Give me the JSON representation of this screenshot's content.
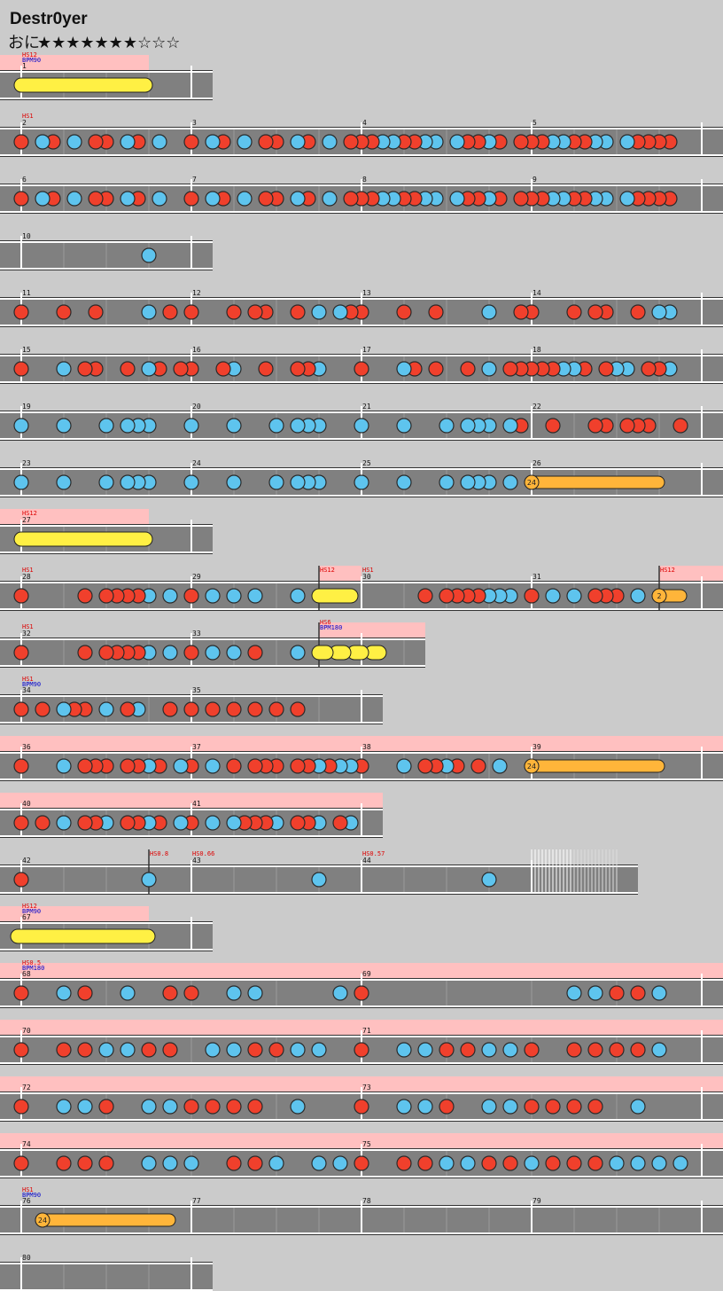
{
  "title": "Destr0yer",
  "difficulty": {
    "name": "おに",
    "stars": "★★★★★★★☆☆☆"
  },
  "rows": [
    {
      "measures": [
        1
      ],
      "events": [
        {
          "hs": "HS12",
          "bpm": "BPM90"
        }
      ],
      "notes": ""
    },
    {
      "measures": [
        2,
        3,
        4,
        5
      ],
      "events": [
        {
          "hs": "HS1"
        }
      ],
      "notes": "r-br-b-rr-br-b--r-br-b-rr-br-b-rrrbbrrbb-brrbr-rrrbbrrbb-brrrr--"
    },
    {
      "measures": [
        6,
        7,
        8,
        9
      ],
      "notes": "r-br-b-rr-br-b--r-br-b-rr-br-b-rrrbbrrbb-brrbr-rrrbbrrbb-brrrr--"
    },
    {
      "measures": [
        10
      ],
      "notes": "------------b---"
    },
    {
      "measures": [
        11,
        12,
        13,
        14
      ],
      "notes": "r---r--r----b-r-r---r-rr--r-b-brr---r--r----b--rr---r-rr--r-bb--"
    },
    {
      "measures": [
        15,
        16,
        17,
        18
      ],
      "notes": "r---b-rr--r-br-rr--rb--r--rrb---r---br-r--r-b-rrrrrbbr-rbb-rrb--"
    },
    {
      "measures": [
        19,
        20,
        21,
        22
      ],
      "notes": "b---b---b-bbb---b---b---b-bbb---b---b---b-bbb-br--r---rr-rrr--r-"
    },
    {
      "measures": [
        23,
        24,
        25,
        26
      ],
      "notes": "b---b---b-bbb---b---b---b-bbb---b---b---b-bbb-b-",
      "balloons": [
        24
      ]
    },
    {
      "measures": [
        27
      ],
      "events": [
        {
          "hs": "HS12"
        }
      ],
      "notes": ""
    },
    {
      "measures": [
        28,
        29,
        30,
        31
      ],
      "events": [
        {
          "hs": "HS1"
        },
        {
          "hs": "HS12"
        },
        {
          "hs": "HS1"
        },
        {
          "hs": "HS12"
        }
      ],
      "notes": "r-----r-rrrrb-b-r-b-b-b---b-----------r-rrrrbbb-r-b-b-rrr-b-----",
      "balloons": [
        2
      ]
    },
    {
      "measures": [
        32,
        33
      ],
      "events": [
        {
          "hs": "HS1"
        },
        {
          "hs": "HS6",
          "bpm": "BPM180"
        }
      ],
      "notes": "r-----r-rrrrb-b-r-b-b-r---b-----"
    },
    {
      "measures": [
        34,
        35
      ],
      "events": [
        {
          "hs": "HS1",
          "bpm": "BPM90"
        }
      ],
      "notes": "r-r-brr-b-rb--r-r-r-r-r-r-r-----"
    },
    {
      "measures": [
        36,
        37,
        38,
        39
      ],
      "notes": "r---b-rrr-rrbr-br-b-r-rrr-rrbrbbr---b-rrbr-r-b--",
      "balloons": [
        24
      ]
    },
    {
      "measures": [
        40,
        41
      ],
      "notes": "r-r-b-rrb-rrbr-br-b-brrrb-rrb-rb"
    },
    {
      "measures": [
        42,
        43,
        44
      ],
      "events": [
        {
          "hs": "HS0.8"
        },
        {
          "hs": "HS0.66"
        },
        {
          "hs": "HS0.57"
        }
      ],
      "notes": "r-----------b---------------b---------------b---"
    },
    {
      "measures": [
        67
      ],
      "events": [
        {
          "hs": "HS12",
          "bpm": "BPM90"
        }
      ],
      "notes": ""
    },
    {
      "measures": [
        68,
        69
      ],
      "events": [
        {
          "hs": "HS0.5",
          "bpm": "BPM180"
        }
      ],
      "notes": "r---b-r---b---r-r---b-b-------b-r-------------------b-b-r-r-b---"
    },
    {
      "measures": [
        70,
        71
      ],
      "notes": "r---r-r-b-b-r-r---b-b-r-r-b-b---r---b-b-r-r-b-b-r---r-r-r-r-b---"
    },
    {
      "measures": [
        72,
        73
      ],
      "notes": "r---b-b-r---b-b-r-r-r-r---b-----r---b-b-r---b-b-r-r-r-r---b-----"
    },
    {
      "measures": [
        74,
        75
      ],
      "notes": "r---r-r-r---b-b-b---r-r-b---b-b-r---r-r-b-b-r-r-b-r-r-r-b-b-b-b-"
    },
    {
      "measures": [
        76,
        77,
        78,
        79
      ],
      "events": [
        {
          "hs": "HS1",
          "bpm": "BPM90"
        }
      ],
      "notes": "",
      "balloons": [
        24
      ]
    },
    {
      "measures": [
        80
      ],
      "notes": ""
    }
  ]
}
